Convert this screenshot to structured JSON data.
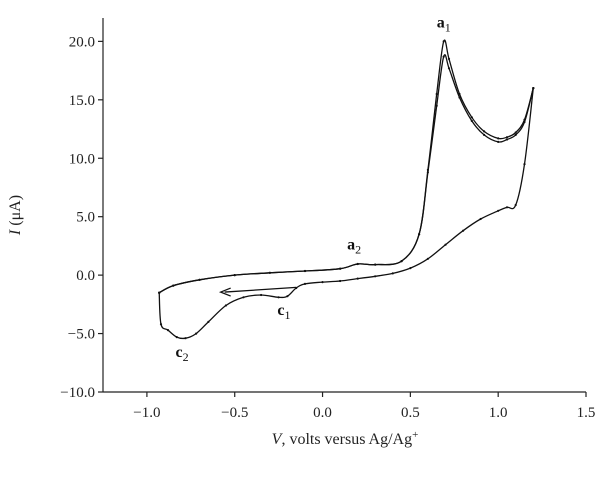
{
  "chart_data": {
    "type": "line",
    "xlabel_var": "V",
    "xlabel_rest": ", volts versus Ag/Ag",
    "xlabel_sup": "+",
    "ylabel_var": "I",
    "ylabel_rest": " (μA)",
    "xlim": [
      -1.25,
      1.5
    ],
    "ylim": [
      -10,
      22
    ],
    "xticks": [
      "−1.0",
      "−0.5",
      "0.0",
      "0.5",
      "1.0",
      "1.5"
    ],
    "xtick_values": [
      -1.0,
      -0.5,
      0.0,
      0.5,
      1.0,
      1.5
    ],
    "yticks": [
      "−10.0",
      "−5.0",
      "0.0",
      "5.0",
      "10.0",
      "15.0",
      "20.0"
    ],
    "ytick_values": [
      -10,
      -5,
      0,
      5,
      10,
      15,
      20
    ],
    "grid": false,
    "series": [
      {
        "x": [
          -0.93,
          -0.85,
          -0.7,
          -0.5,
          -0.3,
          -0.1,
          0.1,
          0.2,
          0.3,
          0.45,
          0.55,
          0.6,
          0.65,
          0.69,
          0.72,
          0.78,
          0.85,
          0.92,
          1.0,
          1.05,
          1.1,
          1.15,
          1.2
        ],
        "y": [
          -1.5,
          -0.9,
          -0.4,
          0.0,
          0.2,
          0.35,
          0.55,
          0.95,
          0.9,
          1.2,
          3.5,
          9.0,
          15.5,
          20.0,
          18.5,
          15.5,
          13.5,
          12.3,
          11.7,
          11.8,
          12.2,
          13.3,
          16.0
        ]
      },
      {
        "x": [
          -0.93,
          -0.85,
          -0.7,
          -0.5,
          -0.3,
          -0.1,
          0.1,
          0.2,
          0.3,
          0.45,
          0.55,
          0.6,
          0.65,
          0.69,
          0.72,
          0.78,
          0.85,
          0.92,
          1.0,
          1.05,
          1.1,
          1.15,
          1.2
        ],
        "y": [
          -1.5,
          -0.9,
          -0.4,
          0.0,
          0.2,
          0.35,
          0.55,
          0.95,
          0.9,
          1.2,
          3.5,
          8.8,
          14.5,
          18.7,
          17.7,
          15.2,
          13.2,
          12.0,
          11.4,
          11.6,
          12.0,
          13.1,
          16.0
        ]
      },
      {
        "x": [
          1.2,
          1.15,
          1.1,
          1.05,
          1.0,
          0.9,
          0.8,
          0.7,
          0.6,
          0.5,
          0.4,
          0.3,
          0.2,
          0.1,
          0.0,
          -0.1,
          -0.15,
          -0.2,
          -0.25,
          -0.35,
          -0.45,
          -0.55,
          -0.65,
          -0.72,
          -0.78,
          -0.83,
          -0.88,
          -0.92,
          -0.93
        ],
        "y": [
          16.0,
          9.5,
          6.0,
          5.8,
          5.5,
          4.8,
          3.8,
          2.6,
          1.4,
          0.6,
          0.15,
          -0.1,
          -0.3,
          -0.5,
          -0.6,
          -0.75,
          -1.1,
          -1.8,
          -1.9,
          -1.7,
          -1.9,
          -2.6,
          -4.0,
          -5.0,
          -5.4,
          -5.3,
          -4.7,
          -4.2,
          -1.5
        ]
      }
    ],
    "annotations": [
      {
        "text": "a",
        "sub": "1",
        "x": 0.69,
        "y": 21.2
      },
      {
        "text": "a",
        "sub": "2",
        "x": 0.18,
        "y": 2.2
      },
      {
        "text": "c",
        "sub": "1",
        "x": -0.22,
        "y": -3.4
      },
      {
        "text": "c",
        "sub": "2",
        "x": -0.8,
        "y": -7.0
      }
    ],
    "arrow": {
      "from": [
        -0.15,
        -1.05
      ],
      "to": [
        -0.58,
        -1.45
      ]
    }
  }
}
